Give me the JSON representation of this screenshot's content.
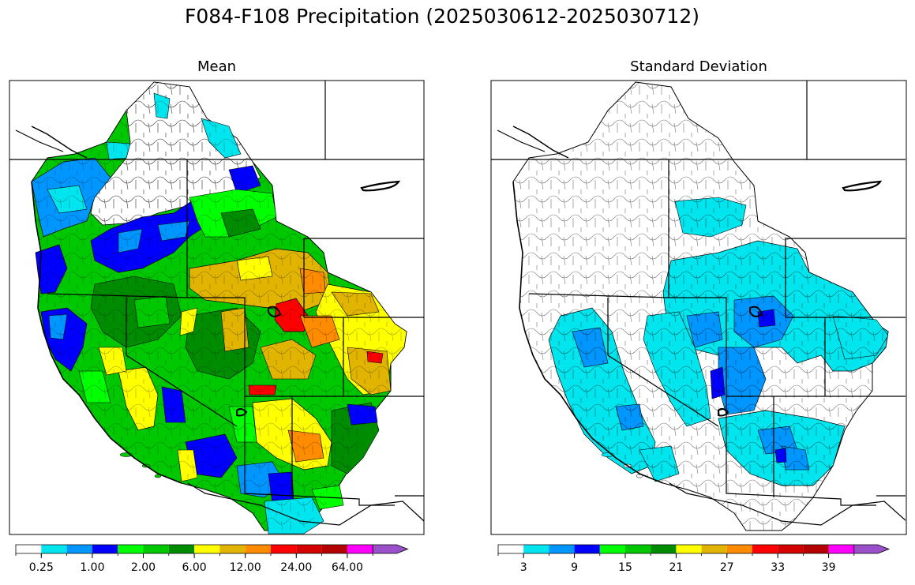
{
  "figure": {
    "suptitle": "F084-F108 Precipitation (2025030612-2025030712)"
  },
  "panels": [
    {
      "id": "mean",
      "title": "Mean"
    },
    {
      "id": "stddev",
      "title": "Standard Deviation"
    }
  ],
  "colorbars": {
    "mean": {
      "colors": [
        "#ffffff",
        "#00e5ee",
        "#0096ff",
        "#0000ff",
        "#00ff00",
        "#00c800",
        "#008c00",
        "#ffff00",
        "#e0b400",
        "#ff8c00",
        "#ff0000",
        "#d40000",
        "#b40000",
        "#ff00ff",
        "#9a50c8"
      ],
      "ticks": [
        "0.25",
        "1.00",
        "2.00",
        "6.00",
        "12.00",
        "24.00",
        "64.00"
      ],
      "extend": "max"
    },
    "stddev": {
      "colors": [
        "#ffffff",
        "#00e5ee",
        "#0096ff",
        "#0000ff",
        "#00ff00",
        "#00c800",
        "#008c00",
        "#ffff00",
        "#e0b400",
        "#ff8c00",
        "#ff0000",
        "#d40000",
        "#b40000",
        "#ff00ff",
        "#9a50c8"
      ],
      "ticks": [
        "3",
        "9",
        "15",
        "21",
        "27",
        "33",
        "39"
      ],
      "extend": "max"
    }
  },
  "map_regions": {
    "mean": [
      {
        "name": "wa-north-cascades",
        "color": "#00e5ee"
      },
      {
        "name": "wa-coast",
        "color": "#0096ff"
      },
      {
        "name": "or-coast",
        "color": "#0000ff"
      },
      {
        "name": "n-california-coast",
        "color": "#0000ff"
      },
      {
        "name": "idaho-central",
        "color": "#0000ff"
      },
      {
        "name": "montana-west",
        "color": "#00c800"
      },
      {
        "name": "wyoming-central",
        "color": "#e0b400"
      },
      {
        "name": "colorado-front-range",
        "color": "#ff0000"
      },
      {
        "name": "colorado-plains",
        "color": "#ffff00"
      },
      {
        "name": "utah-central",
        "color": "#008c00"
      },
      {
        "name": "nevada-central",
        "color": "#00c800"
      },
      {
        "name": "sierra-nevada",
        "color": "#ffff00"
      },
      {
        "name": "s-california",
        "color": "#0000ff"
      },
      {
        "name": "arizona-central",
        "color": "#ffff00"
      },
      {
        "name": "new-mexico",
        "color": "#008c00"
      },
      {
        "name": "sonora-border",
        "color": "#00e5ee"
      }
    ],
    "stddev": [
      {
        "name": "montana-central",
        "color": "#00e5ee"
      },
      {
        "name": "wyoming-colorado",
        "color": "#00e5ee"
      },
      {
        "name": "colorado-core",
        "color": "#0096ff"
      },
      {
        "name": "california-coast",
        "color": "#00e5ee"
      },
      {
        "name": "nevada-utah",
        "color": "#00e5ee"
      },
      {
        "name": "arizona-nm",
        "color": "#00e5ee"
      },
      {
        "name": "utah-core",
        "color": "#0096ff"
      },
      {
        "name": "nm-core",
        "color": "#0000ff"
      }
    ]
  }
}
